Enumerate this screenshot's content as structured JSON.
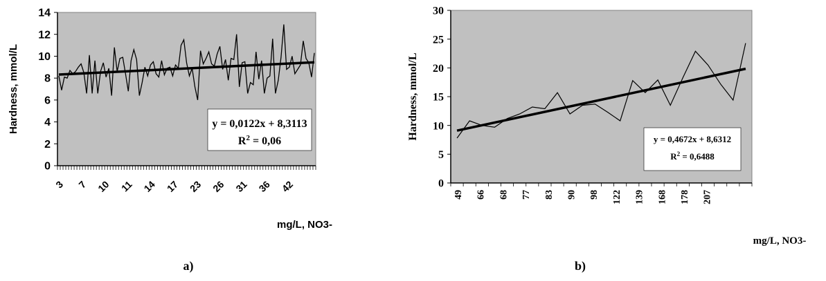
{
  "chart_data": [
    {
      "type": "line",
      "panel_label": "a)",
      "ylabel": "Hardness, mmol/L",
      "xlabel": "mg/L,  NO3-",
      "ylim": [
        0,
        14
      ],
      "yticks": [
        0,
        2,
        4,
        6,
        8,
        10,
        12,
        14
      ],
      "xtick_labels": [
        "3",
        "7",
        "10",
        "11",
        "14",
        "17",
        "23",
        "26",
        "31",
        "36",
        "42"
      ],
      "grid": false,
      "colors": {
        "plot_bg": "#c0c0c0",
        "line": "#000000"
      },
      "series": [
        {
          "values": [
            8.2,
            6.9,
            8.1,
            8.0,
            8.7,
            8.4,
            8.6,
            9.0,
            9.3,
            8.5,
            6.6,
            10.1,
            6.6,
            9.6,
            6.6,
            8.6,
            9.4,
            8.1,
            8.9,
            6.4,
            10.8,
            8.6,
            9.8,
            9.9,
            8.4,
            6.8,
            9.6,
            10.6,
            9.7,
            6.4,
            7.6,
            9.0,
            8.2,
            9.2,
            9.5,
            8.4,
            8.1,
            9.6,
            8.3,
            8.9,
            9.0,
            8.2,
            9.2,
            8.9,
            11.0,
            11.5,
            9.4,
            8.2,
            8.9,
            7.2,
            6.0,
            10.5,
            9.3,
            9.8,
            10.4,
            9.3,
            9.1,
            10.2,
            10.9,
            8.8,
            9.7,
            7.8,
            9.8,
            9.7,
            12.0,
            7.2,
            9.4,
            9.5,
            6.6,
            7.6,
            7.4,
            10.4,
            7.9,
            9.6,
            6.6,
            8.0,
            8.2,
            11.6,
            6.6,
            7.8,
            9.9,
            12.9,
            8.8,
            9.0,
            10.0,
            8.4,
            8.8,
            9.2,
            11.4,
            9.8,
            9.4,
            8.1,
            10.3
          ]
        }
      ],
      "trendline": {
        "equation": "y = 0,0122x + 8,3113",
        "r2_prefix": "R",
        "r2_sup": "2",
        "r2_value": " = 0,06",
        "slope": 0.0122,
        "intercept": 8.3113
      }
    },
    {
      "type": "line",
      "panel_label": "b)",
      "ylabel": "Hardness, mmol/L",
      "xlabel": "mg/L, NO3-",
      "ylim": [
        0,
        30
      ],
      "yticks": [
        0,
        5,
        10,
        15,
        20,
        25,
        30
      ],
      "xtick_labels": [
        "49",
        "66",
        "68",
        "77",
        "83",
        "90",
        "98",
        "122",
        "139",
        "168",
        "178",
        "207"
      ],
      "grid": false,
      "colors": {
        "plot_bg": "#c0c0c0",
        "line": "#000000"
      },
      "series": [
        {
          "values": [
            7.8,
            10.8,
            10.0,
            9.7,
            11.2,
            12.0,
            13.2,
            12.9,
            15.7,
            12.0,
            13.5,
            13.7,
            12.3,
            10.8,
            17.8,
            15.7,
            17.9,
            13.5,
            18.3,
            22.9,
            20.5,
            17.2,
            14.4,
            24.3
          ]
        }
      ],
      "trendline": {
        "equation": "y = 0,4672x + 8,6312",
        "r2_prefix": "R",
        "r2_sup": "2",
        "r2_value": " = 0,6488",
        "slope": 0.4672,
        "intercept": 8.6312
      }
    }
  ]
}
